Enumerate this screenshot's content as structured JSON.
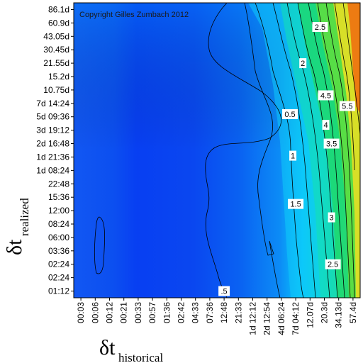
{
  "chart_data": {
    "type": "heatmap",
    "copyright": "Copyright Gilles Zumbach 2012",
    "xlabel": {
      "symbol": "δt",
      "subscript": "historical"
    },
    "ylabel": {
      "symbol": "δt",
      "subscript": "realized"
    },
    "x_ticks": [
      "00:03",
      "00:06",
      "00:12",
      "00:21",
      "00:33",
      "00:57",
      "01:36",
      "02:42",
      "04:33",
      "07:36",
      "12:48",
      "21:33",
      "1d 12:12",
      "2d 12:54",
      "4d 06:24",
      "7d 04:12",
      "12.07d",
      "20.3d",
      "34.13d",
      "57.4d"
    ],
    "y_ticks": [
      "86.1d",
      "60.9d",
      "43.05d",
      "30.45d",
      "21.55d",
      "15.2d",
      "10.75d",
      "7d 14:24",
      "5d 09:36",
      "3d 19:12",
      "2d 16:48",
      "1d 21:36",
      "1d 08:24",
      "22:48",
      "15:36",
      "12:00",
      "08:24",
      "06:00",
      "03:36",
      "02:24",
      "02:24",
      "01:12"
    ],
    "contour_labels": [
      {
        "text": "2.5",
        "x": 16.7,
        "y": 1.3
      },
      {
        "text": "2",
        "x": 15.5,
        "y": 4.0
      },
      {
        "text": "0.5",
        "x": 14.6,
        "y": 7.8
      },
      {
        "text": "4.5",
        "x": 17.1,
        "y": 6.4
      },
      {
        "text": "5.5",
        "x": 18.6,
        "y": 7.2
      },
      {
        "text": "4",
        "x": 17.1,
        "y": 8.6
      },
      {
        "text": "3.5",
        "x": 17.5,
        "y": 10.0
      },
      {
        "text": "1",
        "x": 14.8,
        "y": 10.9
      },
      {
        "text": "1.5",
        "x": 15.0,
        "y": 14.5
      },
      {
        "text": "3",
        "x": 17.5,
        "y": 15.5
      },
      {
        "text": "2.5",
        "x": 17.6,
        "y": 19.0
      },
      {
        "text": ".5",
        "x": 10.0,
        "y": 21.0
      }
    ],
    "colors": {
      "low": "#0b3ff0",
      "mid": "#00c8ff",
      "high_green": "#18e060",
      "high_yellow": "#ffee20",
      "high_orange": "#ff7010"
    }
  }
}
